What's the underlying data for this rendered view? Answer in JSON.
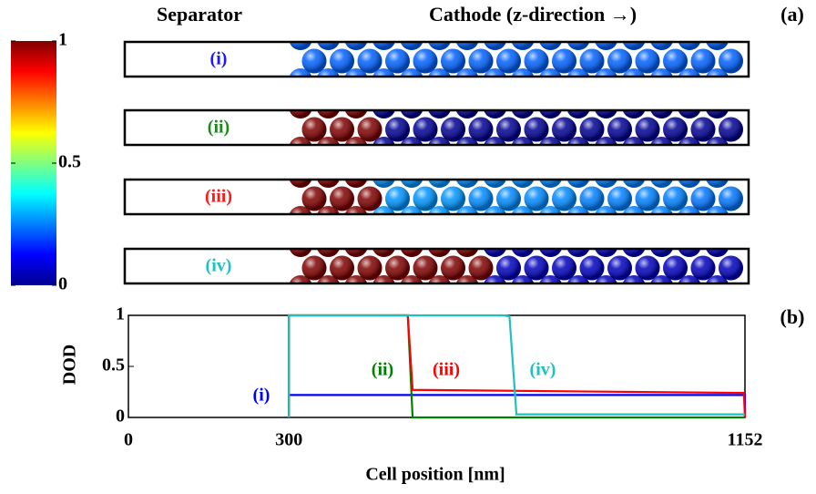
{
  "chart_data": [
    {
      "type": "particles",
      "separator_label": "Separator",
      "cathode_label": "Cathode (z-direction →)",
      "panel_label": "(a)",
      "clim": [
        0,
        1
      ],
      "cticks": [
        0,
        0.5,
        1
      ],
      "rows": [
        {
          "label": "(i)",
          "color": "#1a1aff",
          "values": [
            0.22,
            0.22,
            0.22,
            0.22,
            0.22,
            0.22,
            0.22,
            0.22,
            0.22,
            0.22,
            0.22,
            0.22,
            0.22,
            0.22,
            0.22,
            0.22
          ]
        },
        {
          "label": "(ii)",
          "color": "#1a8a1a",
          "values": [
            1,
            1,
            1,
            0.02,
            0.02,
            0.02,
            0.02,
            0.02,
            0.02,
            0.02,
            0.02,
            0.02,
            0.02,
            0.02,
            0.02,
            0.02
          ]
        },
        {
          "label": "(iii)",
          "color": "#ff1a1a",
          "values": [
            1,
            1,
            1,
            0.27,
            0.27,
            0.27,
            0.26,
            0.26,
            0.26,
            0.26,
            0.25,
            0.25,
            0.25,
            0.25,
            0.24,
            0.24
          ]
        },
        {
          "label": "(iv)",
          "color": "#20c0c0",
          "values": [
            1,
            1,
            1,
            1,
            1,
            1,
            1,
            0.06,
            0.06,
            0.06,
            0.06,
            0.06,
            0.06,
            0.06,
            0.06,
            0.06
          ]
        }
      ]
    },
    {
      "type": "line",
      "panel_label": "(b)",
      "x_label": "Cell position [nm]",
      "y_label": "DOD",
      "xlim": [
        0,
        1152
      ],
      "ylim": [
        0,
        1
      ],
      "xticks": [
        0,
        300,
        1152
      ],
      "yticks": [
        0,
        0.5,
        1
      ],
      "series": [
        {
          "name": "(i)",
          "color": "#0000ff",
          "x": [
            300,
            300,
            1152,
            1152
          ],
          "values": [
            0,
            0.22,
            0.22,
            0
          ]
        },
        {
          "name": "(ii)",
          "color": "#008000",
          "x": [
            300,
            300,
            522,
            531,
            1152
          ],
          "values": [
            0,
            1,
            1,
            0,
            0
          ]
        },
        {
          "name": "(iii)",
          "color": "#ff0000",
          "x": [
            300,
            300,
            522,
            531,
            1150,
            1152
          ],
          "values": [
            0,
            1,
            1,
            0.27,
            0.24,
            0
          ]
        },
        {
          "name": "(iv)",
          "color": "#20c0c0",
          "x": [
            300,
            300,
            700,
            712,
            725,
            1152
          ],
          "values": [
            0,
            1,
            1,
            0.99,
            0.03,
            0.03
          ]
        }
      ]
    }
  ]
}
